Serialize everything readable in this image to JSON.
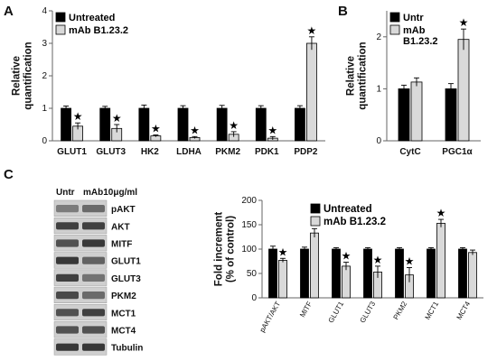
{
  "panel_letters": [
    "A",
    "B",
    "C"
  ],
  "colors": {
    "untreated": "#000000",
    "treated": "#d9d9d9",
    "axis": "#666666"
  },
  "chart_data": [
    {
      "type": "bar",
      "panel": "A",
      "categories": [
        "GLUT1",
        "GLUT3",
        "HK2",
        "LDHA",
        "PKM2",
        "PDK1",
        "PDP2"
      ],
      "series": [
        {
          "name": "Untreated",
          "values": [
            1.0,
            1.0,
            1.0,
            1.0,
            1.0,
            1.0,
            1.0
          ],
          "errors": [
            0.07,
            0.06,
            0.1,
            0.08,
            0.09,
            0.08,
            0.08
          ]
        },
        {
          "name": "mAb B1.23.2",
          "values": [
            0.45,
            0.38,
            0.15,
            0.1,
            0.2,
            0.08,
            3.0
          ],
          "errors": [
            0.1,
            0.12,
            0.03,
            0.03,
            0.08,
            0.05,
            0.2
          ]
        }
      ],
      "significance": [
        "★",
        "★",
        "★",
        "★",
        "★",
        "★",
        "★"
      ],
      "ylabel": "Relative\nquantification",
      "ylim": [
        0,
        4
      ],
      "yticks": [
        0,
        1,
        2,
        3,
        4
      ],
      "legend": "top-left"
    },
    {
      "type": "bar",
      "panel": "B",
      "categories": [
        "CytC",
        "PGC1α"
      ],
      "series": [
        {
          "name": "Untr",
          "values": [
            1.0,
            1.0
          ],
          "errors": [
            0.07,
            0.1
          ]
        },
        {
          "name": "mAb\nB1.23.2",
          "values": [
            1.13,
            1.95
          ],
          "errors": [
            0.08,
            0.2
          ]
        }
      ],
      "significance": [
        "",
        "★"
      ],
      "ylabel": "Relative\nquantification",
      "ylim": [
        0,
        2.5
      ],
      "yticks": [
        0,
        1,
        2
      ],
      "legend": "top-left"
    },
    {
      "type": "bar",
      "panel": "C",
      "categories": [
        "pAKT/AKT",
        "MITF",
        "GLUT1",
        "GLUT3",
        "PKM2",
        "MCT1",
        "MCT4"
      ],
      "series": [
        {
          "name": "Untreated",
          "values": [
            100,
            100,
            100,
            100,
            100,
            100,
            100
          ],
          "errors": [
            6,
            4,
            3,
            3,
            3,
            3,
            3
          ]
        },
        {
          "name": "mAb B1.23.2",
          "values": [
            77,
            133,
            65,
            53,
            47,
            153,
            93
          ],
          "errors": [
            4,
            9,
            8,
            12,
            15,
            8,
            5
          ]
        }
      ],
      "significance": [
        "★",
        "★",
        "★",
        "★",
        "★",
        "★",
        ""
      ],
      "ylabel": "Fold increment\n(% of control)",
      "ylim": [
        0,
        200
      ],
      "yticks": [
        0,
        50,
        100,
        150,
        200
      ],
      "legend": "top-left"
    }
  ],
  "western_blot": {
    "header": [
      "Untr",
      "mAb10μg/ml"
    ],
    "bands": [
      {
        "label": "pAKT",
        "intensity": [
          0.45,
          0.55
        ]
      },
      {
        "label": "AKT",
        "intensity": [
          0.8,
          0.8
        ]
      },
      {
        "label": "MITF",
        "intensity": [
          0.7,
          0.85
        ]
      },
      {
        "label": "GLUT1",
        "intensity": [
          0.85,
          0.6
        ]
      },
      {
        "label": "GLUT3",
        "intensity": [
          0.8,
          0.5
        ]
      },
      {
        "label": "PKM2",
        "intensity": [
          0.75,
          0.55
        ]
      },
      {
        "label": "MCT1",
        "intensity": [
          0.7,
          0.8
        ]
      },
      {
        "label": "MCT4",
        "intensity": [
          0.7,
          0.7
        ]
      },
      {
        "label": "Tubulin",
        "intensity": [
          0.85,
          0.85
        ]
      }
    ]
  }
}
